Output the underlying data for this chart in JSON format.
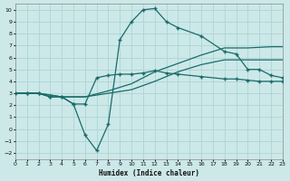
{
  "xlabel": "Humidex (Indice chaleur)",
  "bg_color": "#cce8e8",
  "grid_color": "#aed4d4",
  "line_color": "#1a6b6b",
  "xlim": [
    0,
    23
  ],
  "ylim": [
    -2.5,
    10.5
  ],
  "xticks": [
    0,
    1,
    2,
    3,
    4,
    5,
    6,
    7,
    8,
    9,
    10,
    11,
    12,
    13,
    14,
    15,
    16,
    17,
    18,
    19,
    20,
    21,
    22,
    23
  ],
  "yticks": [
    -2,
    -1,
    0,
    1,
    2,
    3,
    4,
    5,
    6,
    7,
    8,
    9,
    10
  ],
  "curve_peak_x": [
    0,
    1,
    2,
    3,
    4,
    5,
    6,
    7,
    8,
    9,
    10,
    11,
    12,
    13,
    14,
    16,
    18,
    19,
    20,
    21,
    22,
    23
  ],
  "curve_peak_y": [
    3.0,
    3.0,
    3.0,
    2.7,
    2.7,
    2.1,
    -0.5,
    -1.8,
    0.4,
    7.5,
    9.0,
    10.0,
    10.1,
    9.0,
    8.5,
    7.8,
    6.5,
    6.3,
    5.0,
    5.0,
    4.5,
    4.3
  ],
  "curve_med_x": [
    0,
    1,
    2,
    3,
    4,
    5,
    6,
    7,
    8,
    9,
    10,
    11,
    12,
    13,
    14,
    16,
    18,
    19,
    20,
    21,
    22,
    23
  ],
  "curve_med_y": [
    3.0,
    3.0,
    3.0,
    2.7,
    2.7,
    2.1,
    2.1,
    4.3,
    4.5,
    4.6,
    4.6,
    4.7,
    4.9,
    4.7,
    4.6,
    4.4,
    4.2,
    4.2,
    4.1,
    4.0,
    4.0,
    4.0
  ],
  "curve_hi_x": [
    0,
    2,
    4,
    6,
    8,
    10,
    12,
    14,
    16,
    18,
    20,
    22,
    23
  ],
  "curve_hi_y": [
    3.0,
    3.0,
    2.7,
    2.7,
    3.2,
    3.8,
    4.8,
    5.5,
    6.2,
    6.8,
    6.8,
    6.9,
    6.9
  ],
  "curve_lo_x": [
    0,
    2,
    4,
    6,
    8,
    10,
    12,
    14,
    16,
    18,
    20,
    22,
    23
  ],
  "curve_lo_y": [
    3.0,
    3.0,
    2.7,
    2.7,
    3.0,
    3.3,
    4.0,
    4.8,
    5.4,
    5.8,
    5.8,
    5.8,
    5.8
  ]
}
